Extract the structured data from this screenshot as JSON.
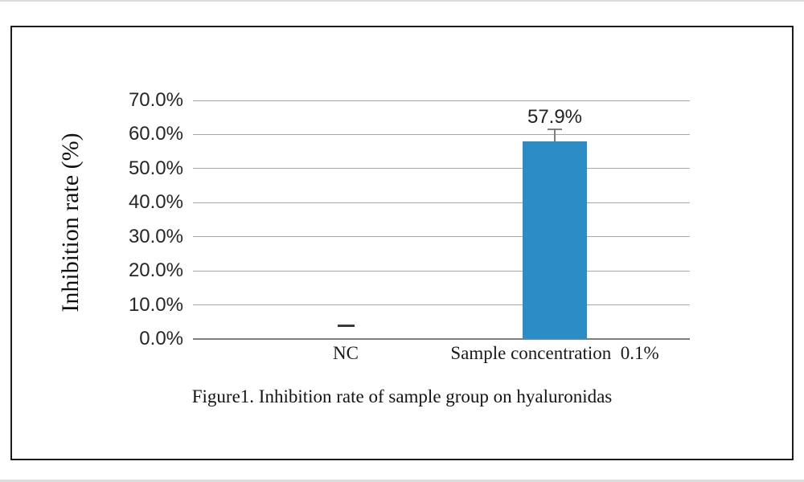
{
  "caption": {
    "text": "Figure1. Inhibition rate of sample group on hyaluronidas"
  },
  "colors": {
    "bar": "#2b8cc6",
    "gridline": "#a8a8a8",
    "axis": "#7e7e7e",
    "error_bar": "#7f7f7f",
    "text": "#1a1a1a"
  },
  "chart_data": {
    "type": "bar",
    "title": "",
    "xlabel": "",
    "ylabel": "Inhibition rate (%)",
    "categories": [
      "NC",
      "Sample concentration  0.1%"
    ],
    "values": [
      0.0,
      57.9
    ],
    "value_labels": [
      "",
      "57.9%"
    ],
    "ylim": [
      0,
      70
    ],
    "ytick_labels": [
      "0.0%",
      "10.0%",
      "20.0%",
      "30.0%",
      "40.0%",
      "50.0%",
      "60.0%",
      "70.0%"
    ],
    "ytick_values": [
      0,
      10,
      20,
      30,
      40,
      50,
      60,
      70
    ],
    "grid": true,
    "legend": false,
    "error_bar": {
      "category_index": 1,
      "upper_value_pct": 61.5
    },
    "nc_dash_marker": {
      "category_index": 0,
      "approx_value_pct": 4.0
    }
  }
}
